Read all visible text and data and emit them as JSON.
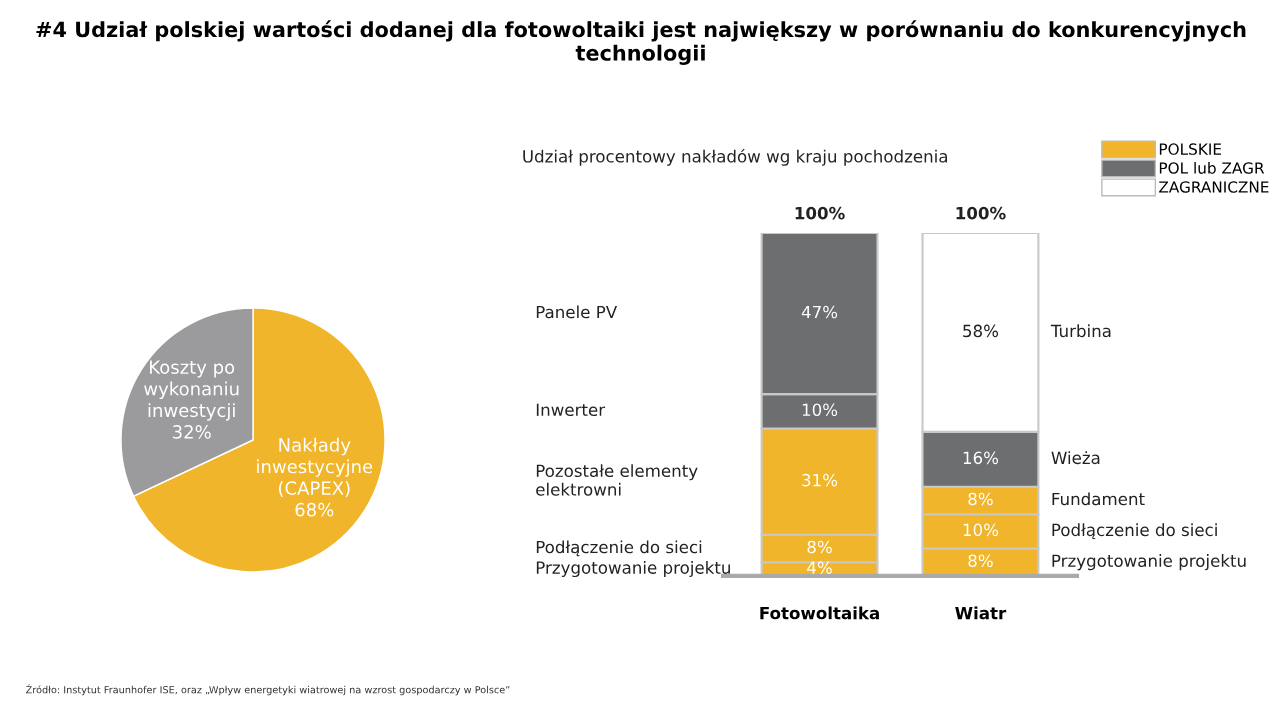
{
  "chart_data": [
    {
      "type": "pie",
      "title": "#4 Udział polskiej wartości dodanej dla fotowoltaiki jest największy w porównaniu do konkurencyjnych technologii",
      "categories": [
        "Nakłady\ninwestycyjne\n(CAPEX)",
        "Koszty po\nwykonaniu\ninwestycji"
      ],
      "values": [
        68,
        32
      ],
      "colors": [
        "#f0b52a",
        "#9b9b9d"
      ],
      "value_labels": [
        "68%",
        "32%"
      ],
      "annotations": [
        "Źródło: Instytut Fraunhofer ISE, oraz „Wpływ energetyki wiatrowej na wzrost gospodarczy w Polsce”"
      ]
    },
    {
      "type": "bar",
      "title": "Udział procentowy nakładów wg kraju pochodzenia",
      "stacked": true,
      "categories": [
        "Fotowoltaika",
        "Wiatr"
      ],
      "series": [
        {
          "colors": [
            "#f0b52a",
            "#f0b52a"
          ],
          "values": [
            4,
            8
          ],
          "value_labels": [
            "4%",
            "8%"
          ]
        },
        {
          "colors": [
            "#f0b52a",
            "#f0b52a"
          ],
          "values": [
            8,
            10
          ],
          "value_labels": [
            "8%",
            "10%"
          ]
        },
        {
          "colors": [
            "#f0b52a",
            "#f0b52a"
          ],
          "values": [
            31,
            8
          ],
          "value_labels": [
            "31%",
            "8%"
          ]
        },
        {
          "colors": [
            "#6d6e70",
            "#6d6e70"
          ],
          "values": [
            10,
            16
          ],
          "value_labels": [
            "10%",
            "16%"
          ]
        },
        {
          "colors": [
            "#6d6e70",
            "#ffffff"
          ],
          "values": [
            47,
            58
          ],
          "value_labels": [
            "47%",
            "58%"
          ]
        },
        {
          "name": "POLSKIE",
          "color": "#f0b52a",
          "values": [
            null,
            null
          ]
        },
        {
          "name": "POL lub ZAGR",
          "color": "#6d6e70",
          "values": [
            null,
            null
          ]
        },
        {
          "name": "ZAGRANICZNE",
          "color": "#ffffff",
          "values": [
            null,
            null
          ]
        }
      ],
      "totals": [
        "100%",
        "100%"
      ],
      "legend": "top right",
      "annotations": [
        "Przygotowanie projektu",
        "Podłączenie do sieci",
        "Pozostałe elementy\nelektrowni",
        "Inwerter",
        "Panele PV",
        "Przygotowanie projektu",
        "Podłączenie do sieci",
        "Fundament",
        "Wieża",
        "Turbina"
      ]
    }
  ]
}
